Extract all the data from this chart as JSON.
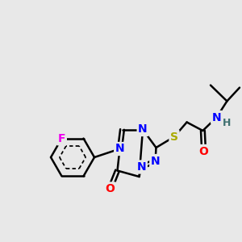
{
  "bg_color": "#e8e8e8",
  "atom_colors": {
    "C": "#000000",
    "N": "#0000ff",
    "O": "#ff0000",
    "S": "#aaaa00",
    "F": "#ee00ee",
    "H": "#407070"
  },
  "bond_color": "#000000",
  "bond_width": 1.8,
  "fig_size": [
    3.0,
    3.0
  ],
  "dpi": 100,
  "xlim": [
    0,
    10
  ],
  "ylim": [
    0,
    10
  ]
}
